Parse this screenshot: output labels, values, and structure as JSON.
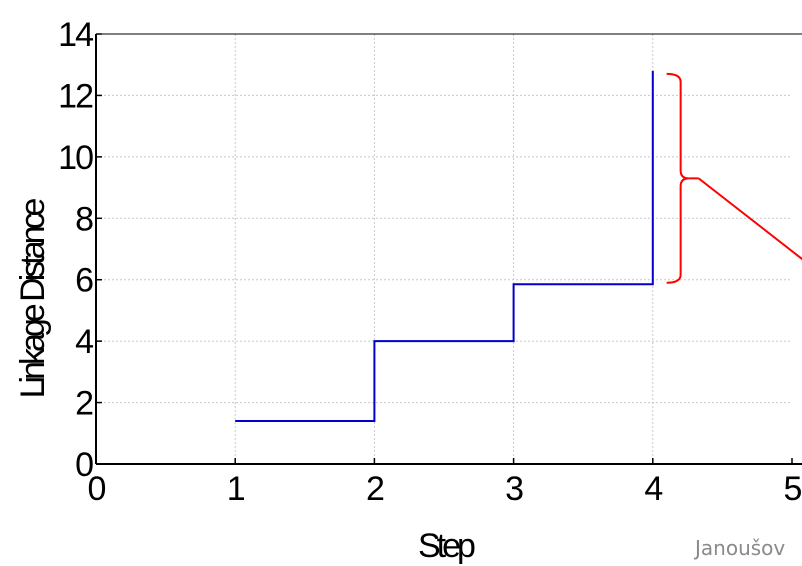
{
  "chart_data": {
    "type": "line",
    "step": true,
    "xlabel": "Step",
    "ylabel": "Linkage Distance",
    "xlim": [
      0,
      5
    ],
    "ylim": [
      0,
      14
    ],
    "xticks": [
      "0",
      "1",
      "2",
      "3",
      "4",
      "5"
    ],
    "yticks": [
      "0",
      "2",
      "4",
      "6",
      "8",
      "10",
      "12",
      "14"
    ],
    "grid": true,
    "series": [
      {
        "color": "#0000cc",
        "points": [
          [
            1,
            1.4
          ],
          [
            2,
            1.4
          ],
          [
            2,
            4.0
          ],
          [
            3,
            4.0
          ],
          [
            3,
            5.85
          ],
          [
            4,
            5.85
          ],
          [
            4,
            12.8
          ]
        ]
      }
    ],
    "annotation": {
      "type": "brace",
      "color": "#ff0000",
      "x": 4.2,
      "y_range": [
        5.9,
        12.7
      ],
      "pointer_to": [
        5.15,
        6.4
      ]
    }
  },
  "credit": "Janoušov"
}
